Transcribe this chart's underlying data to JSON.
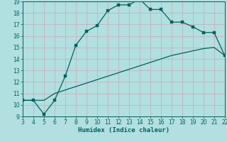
{
  "title": "",
  "xlabel": "Humidex (Indice chaleur)",
  "ylabel": "",
  "background_color": "#b2dfdf",
  "grid_color": "#c8a8b8",
  "line_color": "#006060",
  "xlim": [
    3,
    22
  ],
  "ylim": [
    9,
    19
  ],
  "xticks": [
    3,
    4,
    5,
    6,
    7,
    8,
    9,
    10,
    11,
    12,
    13,
    14,
    15,
    16,
    17,
    18,
    19,
    20,
    21,
    22
  ],
  "yticks": [
    9,
    10,
    11,
    12,
    13,
    14,
    15,
    16,
    17,
    18,
    19
  ],
  "line1_x": [
    3,
    4,
    5,
    6,
    7,
    8,
    9,
    10,
    11,
    12,
    13,
    14,
    15,
    16,
    17,
    18,
    19,
    20,
    21,
    22
  ],
  "line1_y": [
    10.4,
    10.4,
    9.2,
    10.4,
    12.5,
    15.2,
    16.4,
    16.9,
    18.2,
    18.7,
    18.7,
    19.2,
    18.3,
    18.3,
    17.2,
    17.2,
    16.8,
    16.3,
    16.3,
    14.3
  ],
  "line2_x": [
    3,
    4,
    5,
    6,
    7,
    8,
    9,
    10,
    11,
    12,
    13,
    14,
    15,
    16,
    17,
    18,
    19,
    20,
    21,
    22
  ],
  "line2_y": [
    10.4,
    10.4,
    10.4,
    11.0,
    11.3,
    11.6,
    11.9,
    12.2,
    12.5,
    12.8,
    13.1,
    13.4,
    13.7,
    14.0,
    14.3,
    14.5,
    14.7,
    14.9,
    15.0,
    14.3
  ],
  "xlabel_fontsize": 6.5,
  "tick_fontsize": 5.5
}
